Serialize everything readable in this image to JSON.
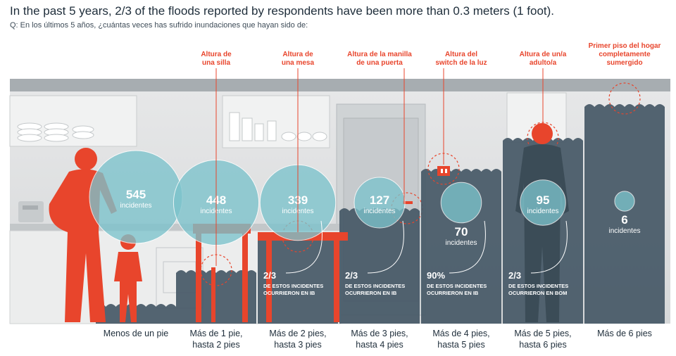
{
  "title": "In the past 5 years, 2/3 of the floods reported by respondents have been more than 0.3 meters (1 foot).",
  "question": "Q: En los últimos 5 años, ¿cuántas veces has sufrido inundaciones que hayan sido de:",
  "colors": {
    "accent": "#e8452c",
    "bubble": "#7cc3cc",
    "panel": "#4a5c68",
    "water": "#455866",
    "background_grey": "#dcdedf",
    "category_text": "#1e2d3a"
  },
  "chart_data": {
    "type": "bar",
    "categories": [
      {
        "lines": [
          "Menos de un pie"
        ]
      },
      {
        "lines": [
          "Más de 1 pie,",
          "hasta 2 pies"
        ]
      },
      {
        "lines": [
          "Más de 2 pies,",
          "hasta 3 pies"
        ]
      },
      {
        "lines": [
          "Más de 3 pies,",
          "hasta 4 pies"
        ]
      },
      {
        "lines": [
          "Más de 4 pies,",
          "hasta 5 pies"
        ]
      },
      {
        "lines": [
          "Más de 5 pies,",
          "hasta 6 pies"
        ]
      },
      {
        "lines": [
          "Más de 6 pies"
        ]
      }
    ],
    "values": [
      545,
      448,
      339,
      127,
      70,
      95,
      6
    ],
    "value_label": "incidentes",
    "height_labels": [
      null,
      {
        "lines": [
          "Altura de",
          "una silla"
        ]
      },
      {
        "lines": [
          "Altura de",
          "una mesa"
        ]
      },
      {
        "lines": [
          "Altura de la manilla",
          "de una puerta"
        ]
      },
      {
        "lines": [
          "Altura del",
          "switch de la luz"
        ]
      },
      {
        "lines": [
          "Altura de un/a",
          "adulto/a"
        ]
      },
      {
        "lines": [
          "Primer piso del hogar",
          "completamente",
          "sumergido"
        ]
      }
    ],
    "annotations": [
      null,
      null,
      {
        "fraction": "2/3",
        "lines": [
          "DE ESTOS INCIDENTES",
          "OCURRIERON EN IB"
        ]
      },
      {
        "fraction": "2/3",
        "lines": [
          "DE ESTOS INCIDENTES",
          "OCURRIERON EN IB"
        ]
      },
      {
        "fraction": "90%",
        "lines": [
          "DE ESTOS INCIDENTES",
          "OCURRIERON EN IB"
        ]
      },
      {
        "fraction": "2/3",
        "lines": [
          "DE ESTOS INCIDENTES",
          "OCURRIERON EN BOM"
        ]
      },
      null
    ]
  }
}
